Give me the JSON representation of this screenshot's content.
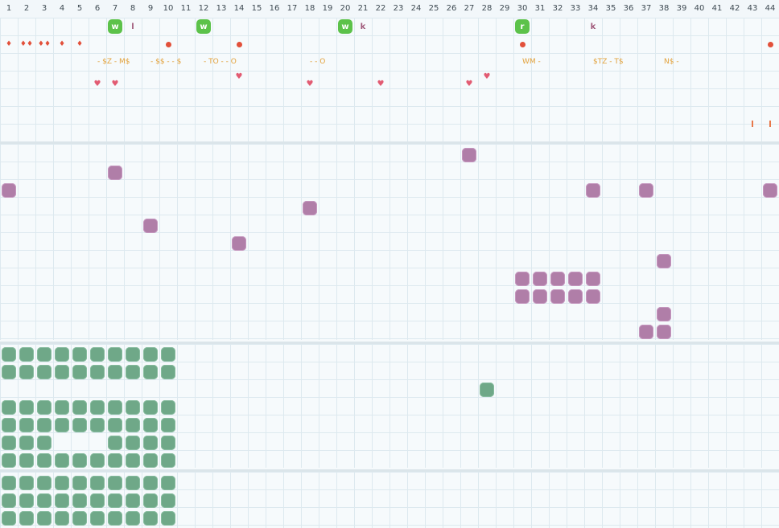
{
  "header": {
    "columns": [
      "1",
      "2",
      "3",
      "4",
      "5",
      "6",
      "7",
      "8",
      "9",
      "10",
      "11",
      "12",
      "13",
      "14",
      "15",
      "16",
      "17",
      "18",
      "19",
      "20",
      "21",
      "22",
      "23",
      "24",
      "25",
      "26",
      "27",
      "28",
      "29",
      "30",
      "31",
      "32",
      "33",
      "34",
      "35",
      "36",
      "37",
      "38",
      "39",
      "40",
      "41",
      "42",
      "43",
      "44"
    ]
  },
  "colors": {
    "background": "#f6fafc",
    "grid_line": "#dde9ef",
    "purple_tile": "#b07ea8",
    "green_tile": "#6fa888",
    "lime_tile": "#5cc24a",
    "heart": "#e25b72",
    "drop": "#e2503a",
    "symbol": "#e2a13a",
    "letter": "#a05a7a"
  },
  "row1_lime_tiles": [
    {
      "col": 7,
      "label": "w"
    },
    {
      "col": 12,
      "label": "w"
    },
    {
      "col": 20,
      "label": "w"
    },
    {
      "col": 30,
      "label": "r"
    }
  ],
  "row1_letters": [
    {
      "col": 8,
      "label": "l"
    },
    {
      "col": 21,
      "label": "k"
    },
    {
      "col": 34,
      "label": "k"
    }
  ],
  "row2_drops": [
    {
      "col": 1,
      "icon": "drop-icon",
      "glyph": "♦"
    },
    {
      "col": 2,
      "icon": "drops-icon",
      "glyph": "♦♦"
    },
    {
      "col": 3,
      "icon": "drops-icon",
      "glyph": "♦♦"
    },
    {
      "col": 4,
      "icon": "drop-icon",
      "glyph": "♦"
    },
    {
      "col": 5,
      "icon": "drop-icon",
      "glyph": "♦"
    }
  ],
  "row2_dots": [
    10,
    14,
    30,
    44
  ],
  "row3_symbols": [
    {
      "col": 6,
      "label": "- $Z - M$"
    },
    {
      "col": 9,
      "label": "- $$ - - $"
    },
    {
      "col": 12,
      "label": "- TO - - O"
    },
    {
      "col": 18,
      "label": "- - O"
    },
    {
      "col": 30,
      "label": "WM -"
    },
    {
      "col": 34,
      "label": "$TZ - T$"
    },
    {
      "col": 38,
      "label": "N$ -"
    }
  ],
  "row4_hearts": [
    {
      "col": 6,
      "row": 4
    },
    {
      "col": 7,
      "row": 4
    },
    {
      "col": 14,
      "row": 3.6
    },
    {
      "col": 18,
      "row": 4
    },
    {
      "col": 22,
      "row": 4
    },
    {
      "col": 27,
      "row": 4
    },
    {
      "col": 28,
      "row": 3.6
    }
  ],
  "row7_bars": [
    43,
    44
  ],
  "purple_tiles": [
    [
      27,
      8
    ],
    [
      7,
      9
    ],
    [
      1,
      10
    ],
    [
      34,
      10
    ],
    [
      37,
      10
    ],
    [
      44,
      10
    ],
    [
      18,
      11
    ],
    [
      9,
      12
    ],
    [
      14,
      13
    ],
    [
      38,
      14
    ],
    [
      30,
      15
    ],
    [
      31,
      15
    ],
    [
      32,
      15
    ],
    [
      33,
      15
    ],
    [
      34,
      15
    ],
    [
      30,
      16
    ],
    [
      31,
      16
    ],
    [
      32,
      16
    ],
    [
      33,
      16
    ],
    [
      34,
      16
    ],
    [
      38,
      17
    ],
    [
      37,
      18
    ],
    [
      38,
      18
    ]
  ],
  "green_tiles": {
    "block_rows": [
      19,
      20,
      22,
      23,
      24,
      25,
      26.5,
      27.5,
      28.5
    ],
    "cols": 10,
    "gap_row": 24,
    "gap_cols": [
      4,
      5,
      6
    ],
    "single": [
      [
        28,
        21
      ]
    ]
  }
}
